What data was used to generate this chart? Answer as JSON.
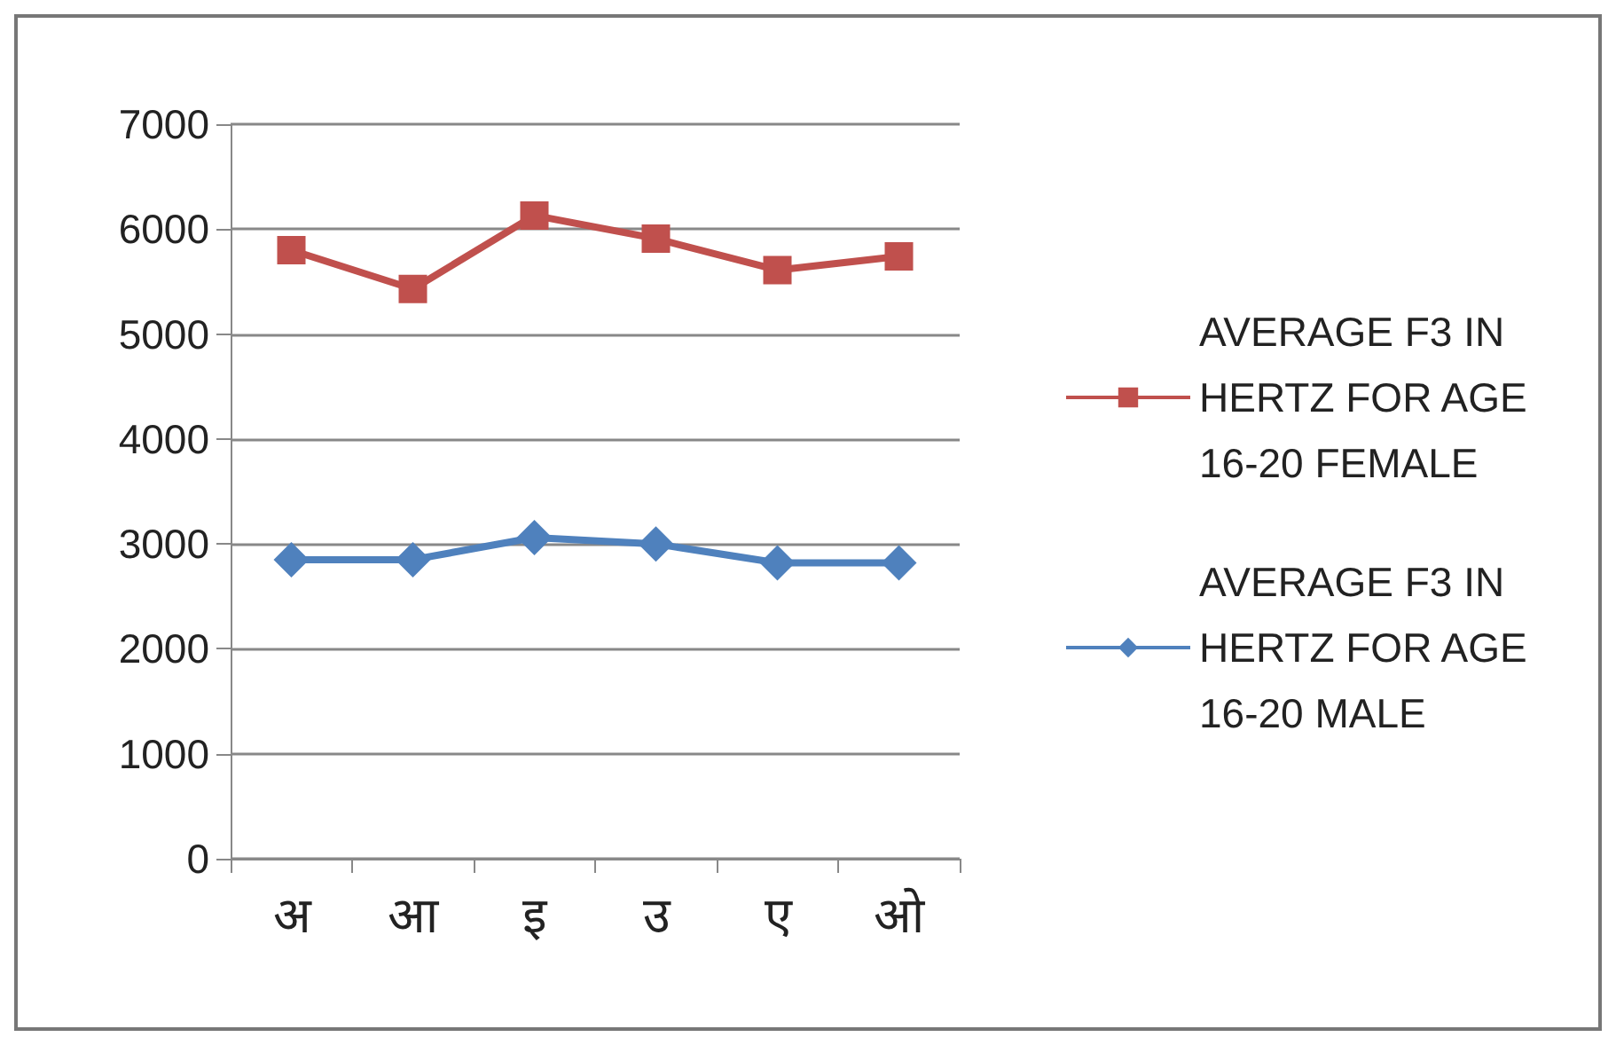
{
  "chart_data": {
    "type": "line",
    "categories": [
      "अ",
      "आ",
      "इ",
      "उ",
      "ए",
      "ओ"
    ],
    "series": [
      {
        "name": "AVERAGE F3 IN HERTZ FOR AGE 16-20 FEMALE",
        "color": "#c0504d",
        "marker": "square",
        "values": [
          5800,
          5430,
          6130,
          5910,
          5610,
          5740
        ]
      },
      {
        "name": "AVERAGE F3 IN HERTZ FOR AGE 16-20 MALE",
        "color": "#4f81bd",
        "marker": "diamond",
        "values": [
          2850,
          2850,
          3060,
          3000,
          2820,
          2820
        ]
      }
    ],
    "ylim": [
      0,
      7000
    ],
    "yticks": [
      0,
      1000,
      2000,
      3000,
      4000,
      5000,
      6000,
      7000
    ],
    "grid": "y",
    "legend": "right"
  }
}
